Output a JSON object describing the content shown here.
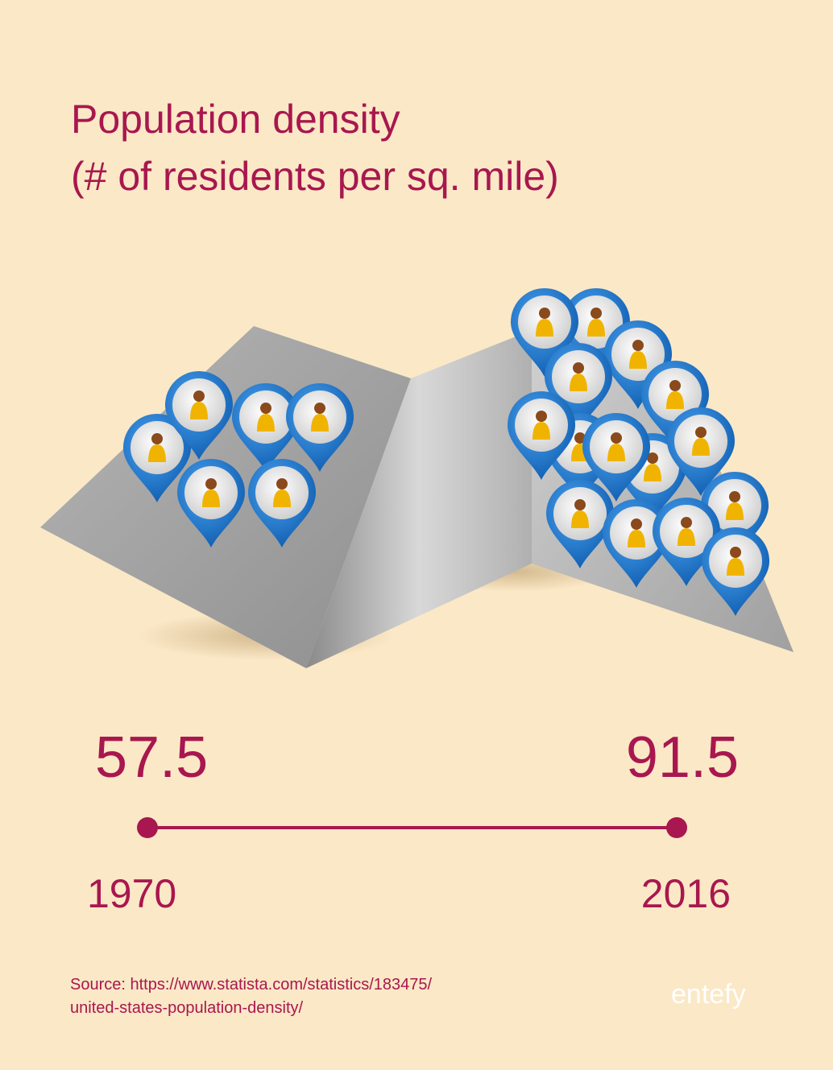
{
  "title": [
    "Population density",
    "(# of residents per sq. mile)"
  ],
  "points": [
    {
      "value": 57.5,
      "year": "1970"
    },
    {
      "value": 91.5,
      "year": "2016"
    }
  ],
  "source": [
    "Source: https://www.statista.com/statistics/183475/",
    "united-states-population-density/"
  ],
  "logo": "entefy"
}
